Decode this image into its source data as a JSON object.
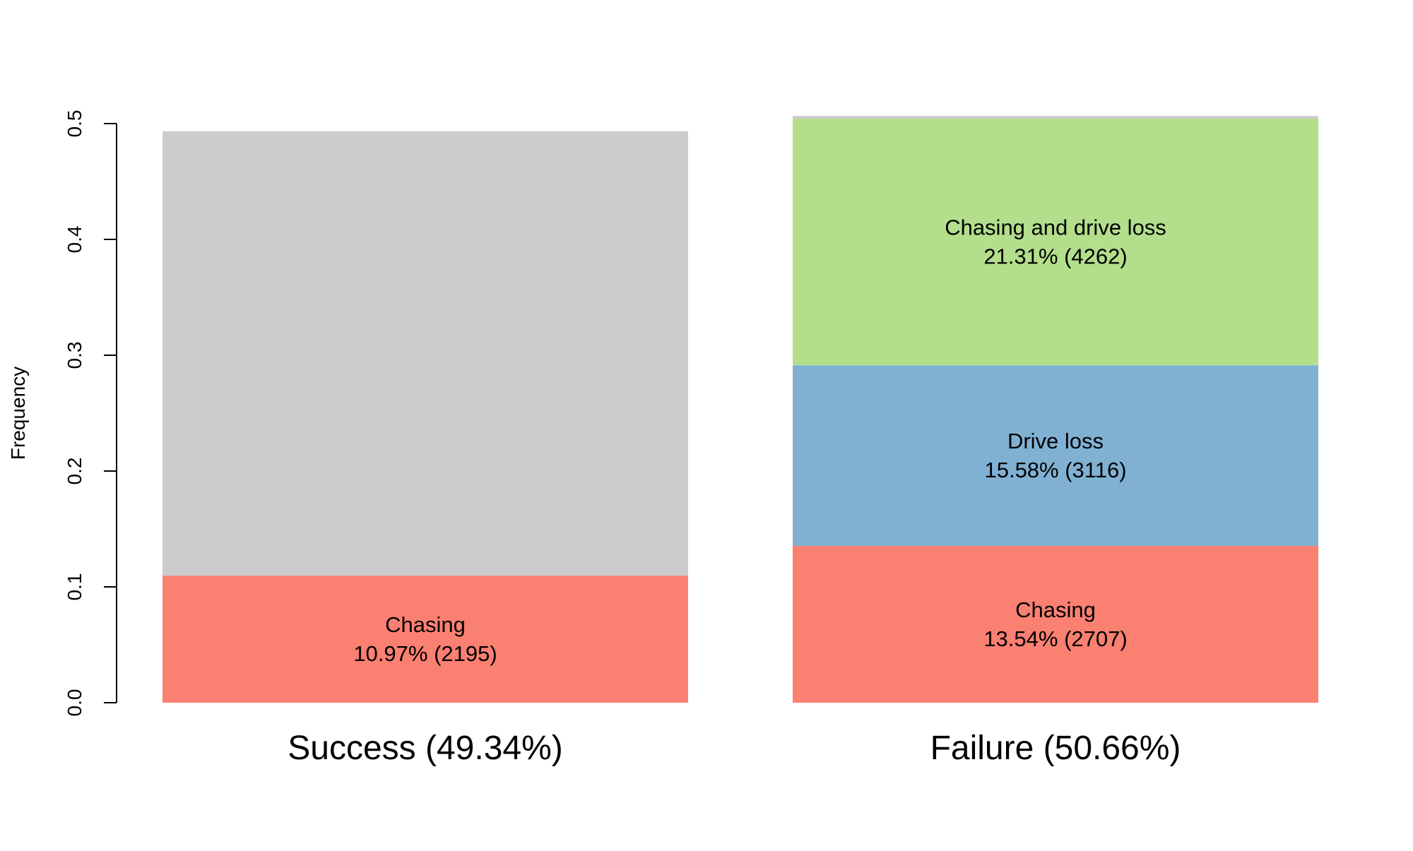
{
  "chart_data": {
    "type": "bar",
    "stacked": true,
    "ylabel": "Frequency",
    "ylim": [
      0,
      0.5
    ],
    "yticks": [
      "0.0",
      "0.1",
      "0.2",
      "0.3",
      "0.4",
      "0.5"
    ],
    "grid": false,
    "legend": "none",
    "categories": [
      {
        "label": "Success (49.34%)",
        "total": 0.4934,
        "segments": [
          {
            "name": "Chasing",
            "value": 0.1097,
            "label": "10.97% (2195)",
            "color": "#fa8072"
          },
          {
            "name": "",
            "value": 0.3837,
            "label": "",
            "color": "#cccccc"
          }
        ]
      },
      {
        "label": "Failure (50.66%)",
        "total": 0.5066,
        "segments": [
          {
            "name": "Chasing",
            "value": 0.1354,
            "label": "13.54% (2707)",
            "color": "#fa8072"
          },
          {
            "name": "Drive loss",
            "value": 0.1558,
            "label": "15.58% (3116)",
            "color": "#80b1d3"
          },
          {
            "name": "Chasing and drive loss",
            "value": 0.2131,
            "label": "21.31% (4262)",
            "color": "#b3de8c"
          },
          {
            "name": "",
            "value": 0.0023,
            "label": "",
            "color": "#cccccc"
          }
        ]
      }
    ]
  }
}
